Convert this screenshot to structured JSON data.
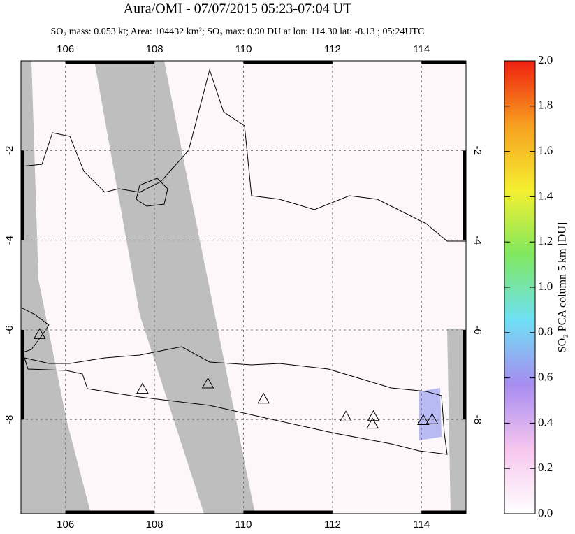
{
  "chart_data": {
    "type": "map",
    "title": "Aura/OMI - 07/07/2015 05:23-07:04 UT",
    "subtitle": "SO₂ mass: 0.053 kt; Area: 104432 km²; SO₂ max: 0.90 DU at lon: 114.30 lat: -8.13 ; 05:24UTC",
    "xlim": [
      105,
      115
    ],
    "ylim": [
      -10.1,
      0
    ],
    "xticks": [
      106,
      108,
      110,
      112,
      114
    ],
    "yticks": [
      -2,
      -4,
      -6,
      -8
    ],
    "grid": true,
    "markers": {
      "lon": [
        105.42,
        107.73,
        109.2,
        110.45,
        112.3,
        112.92,
        112.9,
        114.04,
        114.24
      ],
      "lat": [
        -6.1,
        -7.32,
        -7.2,
        -7.54,
        -7.94,
        -7.93,
        -8.1,
        -8.02,
        -8.0
      ]
    },
    "colorbar": {
      "label": "SO₂ PCA column 5 km [DU]",
      "lim": [
        0,
        2
      ],
      "ticks": [
        {
          "value": 0,
          "label": "0.0"
        },
        0.2,
        0.4,
        0.6,
        0.8,
        {
          "value": 1,
          "label": "1.0"
        },
        1.2,
        1.4,
        1.6,
        1.8,
        {
          "value": 2,
          "label": "2.0"
        }
      ],
      "colors": [
        "#ffffff",
        "#f7c6ef",
        "#a78cf0",
        "#6fe0f5",
        "#7fe860",
        "#f5ef30",
        "#f7a020",
        "#f02010"
      ]
    }
  }
}
